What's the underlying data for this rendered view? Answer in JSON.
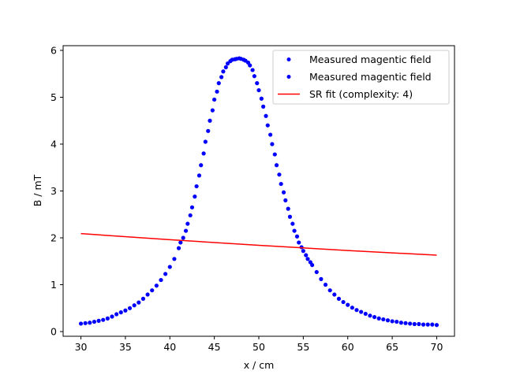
{
  "chart_data": {
    "type": "scatter",
    "title": "",
    "xlabel": "x / cm",
    "ylabel": "B / mT",
    "xlim": [
      28.0,
      72.0
    ],
    "ylim": [
      -0.1,
      6.1
    ],
    "xticks": [
      30,
      35,
      40,
      45,
      50,
      55,
      60,
      65,
      70
    ],
    "yticks": [
      0,
      1,
      2,
      3,
      4,
      5,
      6
    ],
    "grid": false,
    "legend_position": "top-right",
    "series": [
      {
        "name": "Measured magentic field",
        "type": "scatter",
        "color": "#0000ff",
        "marker": "dot",
        "x": [
          30,
          31,
          32,
          33,
          34,
          35,
          36,
          37,
          38,
          39,
          40,
          41,
          41.5,
          42,
          42.5,
          43,
          43.5,
          44,
          44.5,
          45,
          45.5,
          46,
          46.5,
          47,
          47.5,
          48,
          48.5,
          49,
          49.5,
          50,
          50.5,
          51,
          51.5,
          52,
          52.5,
          53,
          53.5,
          54,
          54.5,
          55,
          55.5,
          56,
          57,
          58,
          59,
          60,
          61,
          62,
          63,
          64,
          65,
          66,
          67,
          68,
          69,
          70
        ],
        "y": [
          0.17,
          0.19,
          0.23,
          0.28,
          0.37,
          0.45,
          0.56,
          0.7,
          0.88,
          1.1,
          1.38,
          1.78,
          2.0,
          2.3,
          2.65,
          3.1,
          3.55,
          4.05,
          4.5,
          4.95,
          5.3,
          5.55,
          5.72,
          5.8,
          5.82,
          5.82,
          5.78,
          5.68,
          5.45,
          5.15,
          4.8,
          4.4,
          4.0,
          3.55,
          3.15,
          2.8,
          2.45,
          2.15,
          1.9,
          1.72,
          1.55,
          1.42,
          1.12,
          0.88,
          0.7,
          0.57,
          0.46,
          0.38,
          0.31,
          0.26,
          0.22,
          0.19,
          0.17,
          0.16,
          0.15,
          0.14
        ]
      },
      {
        "name": "Measured magentic field",
        "type": "scatter",
        "color": "#0000ff",
        "marker": "dot",
        "x": [
          30.5,
          31.5,
          32.5,
          33.5,
          34.5,
          35.5,
          36.5,
          37.5,
          38.5,
          39.5,
          40.5,
          41.2,
          41.8,
          42.3,
          42.8,
          43.3,
          43.8,
          44.3,
          44.8,
          45.3,
          45.8,
          46.3,
          46.8,
          47.3,
          47.8,
          48.3,
          48.8,
          49.3,
          49.8,
          50.3,
          50.8,
          51.3,
          51.8,
          52.3,
          52.8,
          53.3,
          53.8,
          54.3,
          54.8,
          55.3,
          55.8,
          56.5,
          57.5,
          58.5,
          59.5,
          60.5,
          61.5,
          62.5,
          63.5,
          64.5,
          65.5,
          66.5,
          67.5,
          68.5,
          69.5
        ],
        "y": [
          0.18,
          0.21,
          0.25,
          0.32,
          0.41,
          0.5,
          0.62,
          0.79,
          0.98,
          1.23,
          1.55,
          1.9,
          2.15,
          2.48,
          2.88,
          3.33,
          3.8,
          4.28,
          4.72,
          5.12,
          5.43,
          5.64,
          5.77,
          5.81,
          5.83,
          5.8,
          5.74,
          5.58,
          5.3,
          4.97,
          4.6,
          4.2,
          3.78,
          3.35,
          2.97,
          2.62,
          2.3,
          2.03,
          1.8,
          1.63,
          1.48,
          1.27,
          1.0,
          0.79,
          0.63,
          0.51,
          0.42,
          0.34,
          0.28,
          0.24,
          0.21,
          0.18,
          0.16,
          0.15,
          0.15
        ]
      },
      {
        "name": "SR fit (complexity: 4)",
        "type": "line",
        "color": "#ff0000",
        "x": [
          30,
          40,
          50,
          60,
          70
        ],
        "y": [
          2.09,
          1.96,
          1.84,
          1.73,
          1.63
        ]
      }
    ]
  }
}
